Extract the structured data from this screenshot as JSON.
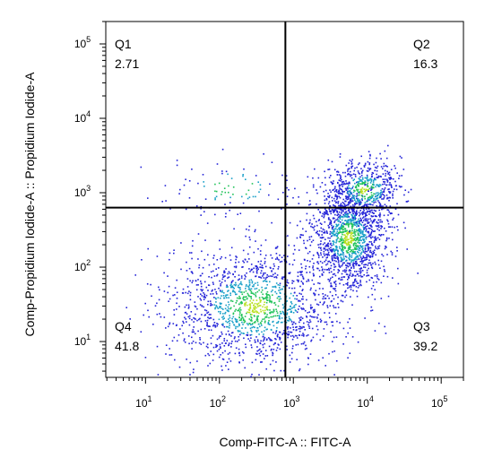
{
  "chart_data": {
    "type": "scatter",
    "subtype": "flow-cytometry-quadrant-density",
    "title": "",
    "xlabel": "Comp-FITC-A :: FITC-A",
    "ylabel": "Comp-Propidium Iodide-A :: Propidium Iodide-A",
    "x_scale": "log",
    "y_scale": "log",
    "xlim": [
      2.9,
      200000
    ],
    "ylim": [
      3.3,
      200000
    ],
    "x_ticks": [
      {
        "base": "10",
        "exp": "1",
        "value": 10
      },
      {
        "base": "10",
        "exp": "2",
        "value": 100
      },
      {
        "base": "10",
        "exp": "3",
        "value": 1000
      },
      {
        "base": "10",
        "exp": "4",
        "value": 10000
      },
      {
        "base": "10",
        "exp": "5",
        "value": 100000
      }
    ],
    "y_ticks": [
      {
        "base": "10",
        "exp": "1",
        "value": 10
      },
      {
        "base": "10",
        "exp": "2",
        "value": 100
      },
      {
        "base": "10",
        "exp": "3",
        "value": 1000
      },
      {
        "base": "10",
        "exp": "4",
        "value": 10000
      },
      {
        "base": "10",
        "exp": "5",
        "value": 100000
      }
    ],
    "gate": {
      "x": 780,
      "y": 630
    },
    "quadrants": [
      {
        "name": "Q1",
        "percent": "2.71",
        "position": "top-left"
      },
      {
        "name": "Q2",
        "percent": "16.3",
        "position": "top-right"
      },
      {
        "name": "Q3",
        "percent": "39.2",
        "position": "bottom-right"
      },
      {
        "name": "Q4",
        "percent": "41.8",
        "position": "bottom-left"
      }
    ],
    "populations": [
      {
        "label": "Q4 cluster",
        "center_x": 300,
        "center_y": 30,
        "spread_x_decades": 0.6,
        "spread_y_decades": 0.4,
        "weight": 0.418
      },
      {
        "label": "Q3 cluster",
        "center_x": 5500,
        "center_y": 250,
        "spread_x_decades": 0.25,
        "spread_y_decades": 0.35,
        "weight": 0.392
      },
      {
        "label": "Q2 cluster",
        "center_x": 9000,
        "center_y": 1100,
        "spread_x_decades": 0.25,
        "spread_y_decades": 0.2,
        "weight": 0.163
      },
      {
        "label": "Q1 cluster",
        "center_x": 150,
        "center_y": 1200,
        "spread_x_decades": 0.5,
        "spread_y_decades": 0.2,
        "weight": 0.027
      }
    ],
    "density_colors": [
      "#2424d8",
      "#1aa0c8",
      "#22c35a",
      "#b8e020"
    ],
    "grid": false,
    "legend": "none"
  }
}
